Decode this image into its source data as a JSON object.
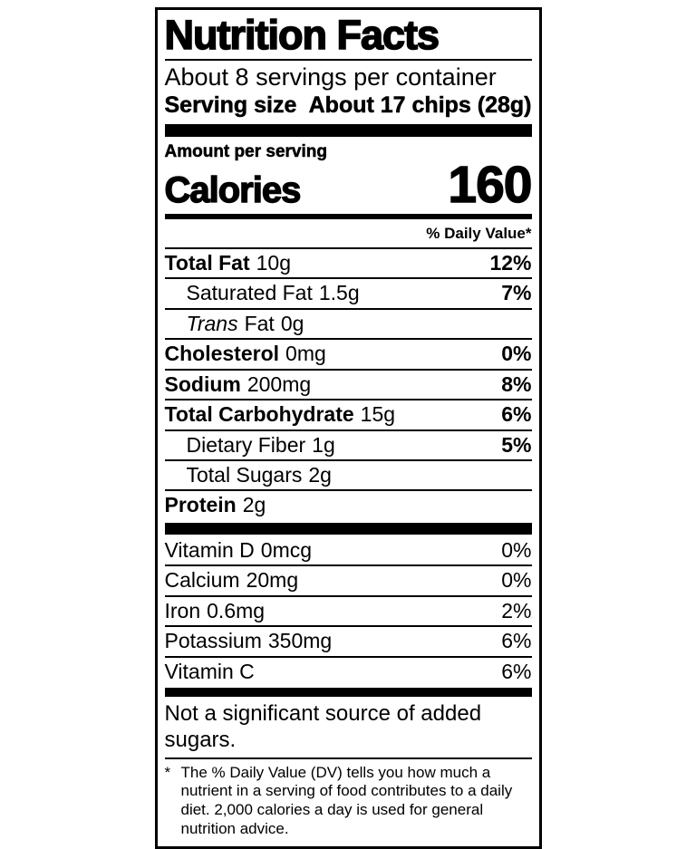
{
  "colors": {
    "text": "#000000",
    "background": "#ffffff"
  },
  "label": {
    "title": "Nutrition Facts",
    "servings_per_container": "About 8 servings per container",
    "serving_size": {
      "label": "Serving size",
      "value": "About 17 chips (28g)"
    },
    "amount_per_serving": "Amount per serving",
    "calories": {
      "label": "Calories",
      "value": "160"
    },
    "daily_value_header": "% Daily Value*",
    "nutrients": [
      {
        "name": "Total Fat",
        "amount": "10g",
        "dv": "12%"
      },
      {
        "name": "Saturated Fat",
        "amount": "1.5g",
        "dv": "7%"
      },
      {
        "name_italic": "Trans",
        "name": "Fat",
        "amount": "0g",
        "dv": ""
      },
      {
        "name": "Cholesterol",
        "amount": "0mg",
        "dv": "0%"
      },
      {
        "name": "Sodium",
        "amount": "200mg",
        "dv": "8%"
      },
      {
        "name": "Total Carbohydrate",
        "amount": "15g",
        "dv": "6%"
      },
      {
        "name": "Dietary Fiber",
        "amount": "1g",
        "dv": "5%"
      },
      {
        "name": "Total Sugars",
        "amount": "2g",
        "dv": ""
      },
      {
        "name": "Protein",
        "amount": "2g",
        "dv": ""
      }
    ],
    "micronutrients": [
      {
        "name": "Vitamin D",
        "amount": "0mcg",
        "dv": "0%"
      },
      {
        "name": "Calcium",
        "amount": "20mg",
        "dv": "0%"
      },
      {
        "name": "Iron",
        "amount": "0.6mg",
        "dv": "2%"
      },
      {
        "name": "Potassium",
        "amount": "350mg",
        "dv": "6%"
      },
      {
        "name": "Vitamin C",
        "amount": "",
        "dv": "6%"
      }
    ],
    "not_significant_note": "Not a significant source of added sugars.",
    "footnote_marker": "*",
    "footnote": "The % Daily Value (DV) tells you how much a nutrient in a serving of food contributes to a daily diet. 2,000 calories a day is used for general nutrition advice."
  }
}
